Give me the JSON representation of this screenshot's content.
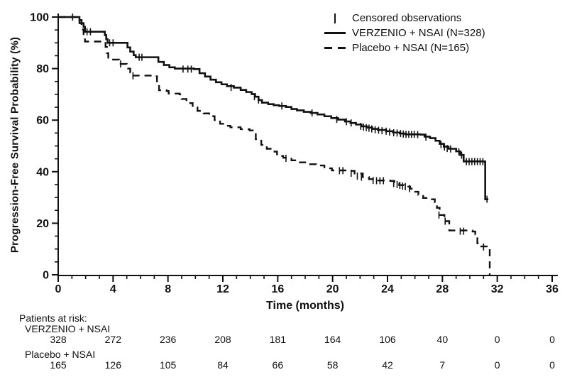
{
  "legend": {
    "censored_label": "Censored observations",
    "verzenio_label": "VERZENIO + NSAI (N=328)",
    "placebo_label": "Placebo + NSAI (N=165)"
  },
  "at_risk": {
    "title": "Patients at risk:",
    "time_points": [
      0,
      4,
      8,
      12,
      16,
      20,
      24,
      28,
      32,
      36
    ],
    "rows": [
      {
        "label": "VERZENIO + NSAI",
        "counts": [
          328,
          272,
          236,
          208,
          181,
          164,
          106,
          40,
          0,
          0
        ]
      },
      {
        "label": "Placebo + NSAI",
        "counts": [
          165,
          126,
          105,
          84,
          66,
          58,
          42,
          7,
          0,
          0
        ]
      }
    ]
  },
  "chart_data": {
    "type": "line",
    "subtype": "kaplan-meier-step",
    "title": "",
    "xlabel": "Time (months)",
    "ylabel": "Progression-Free Survival Probability (%)",
    "xlim": [
      0,
      36
    ],
    "ylim": [
      0,
      100
    ],
    "x_ticks": [
      0,
      4,
      8,
      12,
      16,
      20,
      24,
      28,
      32,
      36
    ],
    "x_minor_step": 1,
    "y_ticks": [
      0,
      20,
      40,
      60,
      80,
      100
    ],
    "y_minor_step": 5,
    "grid": false,
    "legend_position": "top-right",
    "line_color": "#111111",
    "background_color": "#ffffff",
    "series": [
      {
        "name": "VERZENIO + NSAI (N=328)",
        "style": "solid",
        "steps": [
          [
            0,
            100
          ],
          [
            1.4,
            100
          ],
          [
            1.55,
            98.8
          ],
          [
            1.7,
            97.6
          ],
          [
            1.85,
            96.2
          ],
          [
            1.95,
            94.3
          ],
          [
            3.3,
            94.3
          ],
          [
            3.4,
            93.0
          ],
          [
            3.5,
            91.4
          ],
          [
            3.6,
            90.0
          ],
          [
            4.9,
            90.0
          ],
          [
            5.05,
            88.2
          ],
          [
            5.25,
            86.6
          ],
          [
            5.5,
            85.2
          ],
          [
            5.65,
            84.4
          ],
          [
            7.1,
            84.4
          ],
          [
            7.3,
            82.6
          ],
          [
            7.7,
            81.4
          ],
          [
            8.1,
            80.5
          ],
          [
            8.5,
            80.0
          ],
          [
            9.9,
            79.8
          ],
          [
            10.3,
            78.2
          ],
          [
            10.7,
            76.9
          ],
          [
            11.1,
            75.7
          ],
          [
            11.5,
            74.7
          ],
          [
            11.9,
            73.9
          ],
          [
            12.3,
            73.2
          ],
          [
            12.8,
            72.6
          ],
          [
            13.3,
            71.7
          ],
          [
            13.7,
            70.9
          ],
          [
            14.1,
            70.1
          ],
          [
            14.35,
            69.1
          ],
          [
            14.6,
            67.8
          ],
          [
            14.85,
            66.8
          ],
          [
            15.3,
            66.2
          ],
          [
            15.7,
            65.8
          ],
          [
            16.1,
            65.5
          ],
          [
            16.6,
            65.1
          ],
          [
            17.0,
            64.3
          ],
          [
            17.4,
            63.8
          ],
          [
            17.9,
            63.2
          ],
          [
            18.4,
            62.8
          ],
          [
            18.9,
            62.2
          ],
          [
            19.4,
            61.5
          ],
          [
            19.9,
            60.8
          ],
          [
            20.4,
            60.2
          ],
          [
            20.9,
            59.5
          ],
          [
            21.3,
            58.9
          ],
          [
            21.7,
            58.3
          ],
          [
            22.1,
            57.6
          ],
          [
            22.5,
            57.1
          ],
          [
            22.9,
            56.6
          ],
          [
            23.3,
            56.2
          ],
          [
            23.9,
            55.7
          ],
          [
            24.4,
            55.2
          ],
          [
            24.9,
            54.8
          ],
          [
            25.3,
            54.5
          ],
          [
            26.4,
            54.4
          ],
          [
            26.7,
            53.6
          ],
          [
            27.1,
            53.0
          ],
          [
            27.5,
            52.0
          ],
          [
            27.8,
            50.8
          ],
          [
            28.1,
            49.7
          ],
          [
            28.45,
            48.9
          ],
          [
            29.0,
            47.9
          ],
          [
            29.3,
            46.5
          ],
          [
            29.55,
            44.0
          ],
          [
            31.1,
            43.9
          ],
          [
            31.12,
            29.3
          ],
          [
            31.35,
            29.3
          ]
        ],
        "censors": [
          [
            1.05,
            100
          ],
          [
            2.1,
            94.3
          ],
          [
            2.35,
            94.3
          ],
          [
            3.75,
            90.0
          ],
          [
            4.0,
            90.0
          ],
          [
            5.9,
            84.4
          ],
          [
            6.1,
            84.4
          ],
          [
            9.1,
            79.8
          ],
          [
            9.45,
            79.8
          ],
          [
            9.7,
            79.8
          ],
          [
            12.6,
            72.7
          ],
          [
            14.3,
            69.1
          ],
          [
            14.6,
            67.8
          ],
          [
            16.3,
            65.5
          ],
          [
            18.5,
            62.8
          ],
          [
            20.3,
            60.3
          ],
          [
            21.0,
            59.4
          ],
          [
            21.35,
            58.9
          ],
          [
            22.05,
            57.6
          ],
          [
            22.25,
            57.3
          ],
          [
            22.45,
            57.1
          ],
          [
            22.65,
            56.9
          ],
          [
            22.85,
            56.6
          ],
          [
            23.1,
            56.3
          ],
          [
            23.35,
            56.1
          ],
          [
            23.6,
            55.9
          ],
          [
            23.9,
            55.7
          ],
          [
            24.15,
            55.4
          ],
          [
            24.45,
            55.1
          ],
          [
            24.7,
            55.0
          ],
          [
            24.95,
            54.8
          ],
          [
            25.15,
            54.6
          ],
          [
            25.35,
            54.5
          ],
          [
            25.55,
            54.5
          ],
          [
            25.75,
            54.5
          ],
          [
            25.95,
            54.5
          ],
          [
            26.2,
            54.4
          ],
          [
            26.8,
            53.4
          ],
          [
            27.9,
            50.5
          ],
          [
            28.15,
            49.6
          ],
          [
            28.35,
            49.0
          ],
          [
            28.6,
            48.8
          ],
          [
            29.2,
            47.7
          ],
          [
            29.4,
            46.4
          ],
          [
            29.75,
            43.9
          ],
          [
            29.95,
            43.9
          ],
          [
            30.15,
            43.9
          ],
          [
            30.35,
            43.9
          ],
          [
            30.55,
            43.9
          ],
          [
            30.75,
            43.9
          ],
          [
            30.95,
            43.9
          ],
          [
            31.25,
            29.3
          ]
        ]
      },
      {
        "name": "Placebo + NSAI (N=165)",
        "style": "dashed",
        "steps": [
          [
            0,
            100
          ],
          [
            1.45,
            100
          ],
          [
            1.55,
            97.6
          ],
          [
            1.7,
            95.2
          ],
          [
            1.85,
            92.6
          ],
          [
            1.95,
            90.5
          ],
          [
            3.35,
            90.3
          ],
          [
            3.45,
            88.4
          ],
          [
            3.55,
            86.0
          ],
          [
            3.65,
            83.5
          ],
          [
            4.45,
            83.3
          ],
          [
            4.55,
            81.8
          ],
          [
            4.9,
            81.8
          ],
          [
            5.0,
            80.0
          ],
          [
            5.25,
            78.5
          ],
          [
            5.4,
            77.3
          ],
          [
            7.1,
            77.0
          ],
          [
            7.2,
            74.5
          ],
          [
            7.35,
            71.6
          ],
          [
            7.9,
            71.3
          ],
          [
            8.05,
            70.3
          ],
          [
            8.85,
            70.0
          ],
          [
            9.0,
            68.2
          ],
          [
            9.35,
            66.6
          ],
          [
            9.8,
            65.0
          ],
          [
            10.15,
            63.6
          ],
          [
            10.6,
            62.6
          ],
          [
            11.0,
            61.5
          ],
          [
            11.4,
            60.0
          ],
          [
            11.8,
            58.6
          ],
          [
            12.15,
            57.8
          ],
          [
            12.55,
            57.2
          ],
          [
            13.3,
            56.5
          ],
          [
            13.95,
            56.0
          ],
          [
            14.4,
            52.6
          ],
          [
            14.8,
            50.4
          ],
          [
            15.2,
            48.9
          ],
          [
            15.55,
            47.8
          ],
          [
            15.95,
            46.1
          ],
          [
            16.4,
            45.4
          ],
          [
            17.0,
            44.4
          ],
          [
            17.5,
            43.6
          ],
          [
            18.1,
            42.9
          ],
          [
            18.8,
            42.4
          ],
          [
            19.4,
            41.3
          ],
          [
            19.95,
            40.5
          ],
          [
            21.1,
            40.3
          ],
          [
            21.6,
            39.3
          ],
          [
            22.2,
            37.9
          ],
          [
            22.65,
            37.1
          ],
          [
            23.0,
            36.6
          ],
          [
            24.2,
            36.4
          ],
          [
            24.5,
            35.4
          ],
          [
            24.85,
            34.8
          ],
          [
            25.2,
            34.2
          ],
          [
            25.65,
            33.4
          ],
          [
            25.95,
            32.2
          ],
          [
            26.25,
            31.0
          ],
          [
            26.6,
            29.8
          ],
          [
            27.05,
            29.3
          ],
          [
            27.45,
            28.2
          ],
          [
            27.6,
            26.0
          ],
          [
            27.8,
            23.2
          ],
          [
            28.15,
            20.8
          ],
          [
            28.5,
            17.2
          ],
          [
            30.2,
            16.8
          ],
          [
            30.4,
            15.7
          ],
          [
            30.55,
            12.2
          ],
          [
            30.75,
            11.0
          ],
          [
            31.35,
            10.8
          ],
          [
            31.45,
            0
          ]
        ],
        "censors": [
          [
            4.55,
            81.8
          ],
          [
            5.45,
            77.2
          ],
          [
            16.6,
            45.2
          ],
          [
            20.5,
            40.4
          ],
          [
            20.75,
            40.4
          ],
          [
            21.35,
            39.4
          ],
          [
            21.8,
            38.3
          ],
          [
            22.1,
            37.9
          ],
          [
            22.95,
            36.6
          ],
          [
            23.2,
            36.5
          ],
          [
            23.45,
            36.5
          ],
          [
            23.7,
            36.5
          ],
          [
            24.45,
            35.4
          ],
          [
            24.7,
            35.0
          ],
          [
            24.9,
            34.7
          ],
          [
            25.1,
            34.4
          ],
          [
            25.3,
            34.2
          ],
          [
            25.6,
            33.4
          ],
          [
            27.75,
            23.2
          ],
          [
            28.2,
            20.8
          ],
          [
            29.3,
            16.9
          ],
          [
            29.55,
            16.9
          ],
          [
            31.0,
            10.8
          ]
        ]
      }
    ]
  }
}
